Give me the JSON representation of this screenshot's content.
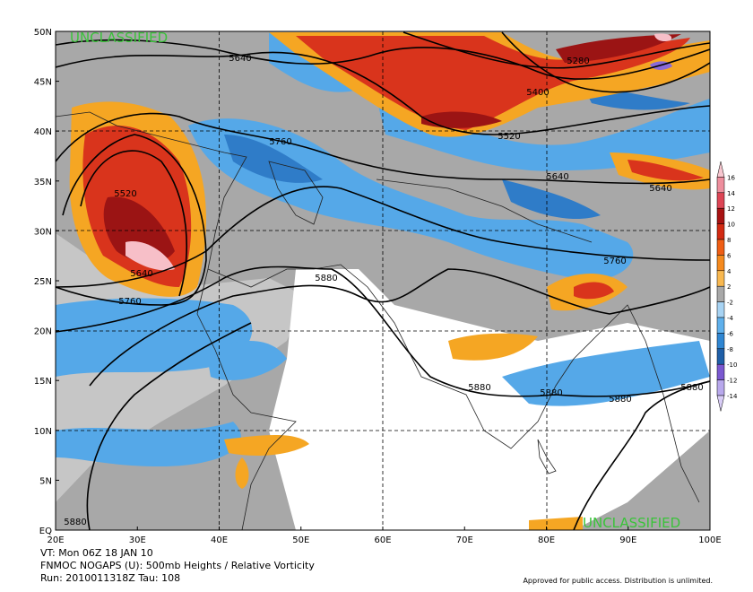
{
  "map": {
    "overlay": [
      "UNCLASSIFIED",
      "UNCLASSIFIED"
    ],
    "lat_labels": [
      "50N",
      "45N",
      "40N",
      "35N",
      "30N",
      "25N",
      "20N",
      "15N",
      "10N",
      "5N",
      "EQ"
    ],
    "lon_labels": [
      "20E",
      "30E",
      "40E",
      "50E",
      "60E",
      "70E",
      "80E",
      "90E",
      "100E"
    ],
    "contour_labels": [
      "5640",
      "5280",
      "5400",
      "5760",
      "5520",
      "5520",
      "5640",
      "5640",
      "5640",
      "5760",
      "5880",
      "5760",
      "5880",
      "5880",
      "5880",
      "5880",
      "5880"
    ],
    "colorbar_labels": [
      "16",
      "14",
      "12",
      "10",
      "8",
      "6",
      "4",
      "2",
      "-2",
      "-4",
      "-6",
      "-8",
      "-10",
      "-12",
      "-14"
    ],
    "caption": [
      "VT: Mon 06Z 18 JAN 10",
      "FNMOC NOGAPS (U): 500mb Heights / Relative Vorticity",
      "Run: 2010011318Z Tau: 108"
    ],
    "notice": "Approved for public access. Distribution is unlimited."
  }
}
